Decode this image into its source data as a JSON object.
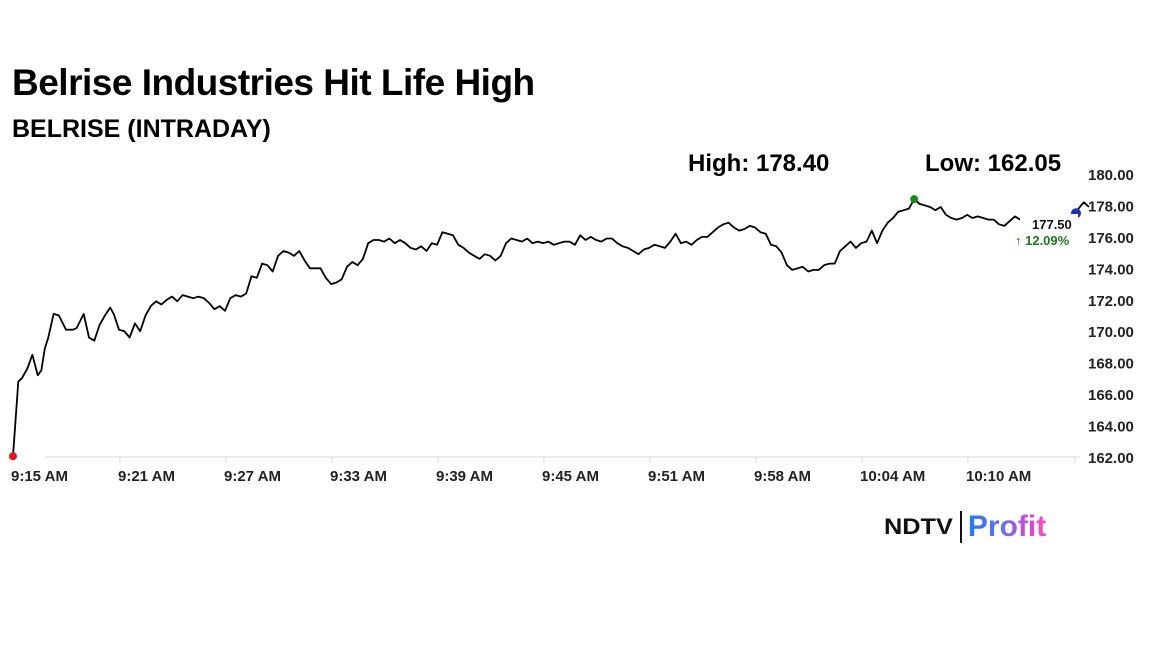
{
  "header": {
    "title": "Belrise Industries Hit Life High",
    "subtitle": "BELRISE (INTRADAY)"
  },
  "stats": {
    "high_label": "High: 178.40",
    "low_label": "Low: 162.05"
  },
  "last": {
    "price": "177.50",
    "change": "↑ 12.09%"
  },
  "logo": {
    "brand": "NDTV",
    "product": "Profit"
  },
  "colors": {
    "line": "#000000",
    "start_marker": "#e8161b",
    "high_marker": "#1a8a1a",
    "end_marker": "#1f2fb8",
    "change_up": "#1e7a1e",
    "grid": "#d9d9d9"
  },
  "chart_data": {
    "type": "line",
    "title": "Belrise Industries Hit Life High",
    "subtitle": "BELRISE (INTRADAY)",
    "xlabel": "",
    "ylabel": "",
    "ylim": [
      162,
      180
    ],
    "y_ticks": [
      "180.00",
      "178.00",
      "176.00",
      "174.00",
      "172.00",
      "170.00",
      "168.00",
      "166.00",
      "164.00",
      "162.00"
    ],
    "x_ticks": [
      "9:15 AM",
      "9:21 AM",
      "9:27 AM",
      "9:33 AM",
      "9:39 AM",
      "9:45 AM",
      "9:51 AM",
      "9:58 AM",
      "10:04 AM",
      "10:10 AM"
    ],
    "grid": false,
    "legend": null,
    "annotations": {
      "high": 178.4,
      "low": 162.05,
      "last": 177.5,
      "change_pct": 12.09
    },
    "series": [
      {
        "name": "BELRISE",
        "x_minutes_from_915": [
          0,
          0.3,
          0.5,
          0.8,
          1.1,
          1.4,
          1.6,
          1.8,
          2.0,
          2.3,
          2.6,
          3.0,
          3.4,
          3.6,
          4.0,
          4.3,
          4.6,
          4.9,
          5.2,
          5.5,
          5.7,
          6.0,
          6.3,
          6.6,
          6.9,
          7.2,
          7.5,
          7.8,
          8.1,
          8.4,
          8.7,
          9.0,
          9.3,
          9.6,
          9.9,
          10.2,
          10.5,
          10.8,
          11.1,
          11.4,
          11.7,
          12.0,
          12.3,
          12.6,
          12.9,
          13.2,
          13.5,
          13.8,
          14.1,
          14.4,
          14.7,
          15.0,
          15.3,
          15.6,
          15.9,
          16.2,
          16.5,
          16.8,
          17.1,
          17.4,
          17.7,
          18.0,
          18.3,
          18.6,
          18.9,
          19.2,
          19.5,
          19.8,
          20.1,
          20.4,
          20.7,
          21.0,
          21.3,
          21.6,
          21.9,
          22.2,
          22.5,
          22.8,
          23.1,
          23.4,
          23.7,
          24.0,
          24.3,
          24.6,
          24.9,
          25.2,
          25.5,
          25.8,
          26.1,
          26.4,
          26.7,
          27.0,
          27.3,
          27.6,
          27.9,
          28.2,
          28.5,
          28.8,
          29.1,
          29.4,
          29.7,
          30.0,
          30.3,
          30.6,
          30.9,
          31.2,
          31.5,
          31.8,
          32.1,
          32.4,
          32.7,
          33.0,
          33.3,
          33.6,
          33.9,
          34.2,
          34.5,
          34.8,
          35.1,
          35.4,
          35.7,
          36.0,
          36.3,
          36.6,
          36.9,
          37.2,
          37.5,
          37.8,
          38.1,
          38.4,
          38.7,
          39.0,
          39.3,
          39.6,
          39.9,
          40.2,
          40.5,
          40.8,
          41.1,
          41.4,
          41.7,
          42.0,
          42.3,
          42.6,
          42.9,
          43.2,
          43.5,
          43.8,
          44.1,
          44.4,
          44.7,
          45.0,
          45.3,
          45.6,
          45.9,
          46.2,
          46.5,
          46.8,
          47.1,
          47.4,
          47.7,
          48.0,
          48.3,
          48.6,
          48.9,
          49.2,
          49.5,
          49.8,
          50.1,
          50.4,
          50.7,
          51.0,
          51.3,
          51.6,
          51.9,
          52.2,
          52.5,
          52.8,
          53.1,
          53.4,
          53.7,
          54.0,
          54.3,
          54.6,
          54.9,
          55.2,
          55.5,
          55.8,
          56.1,
          56.4,
          56.7,
          57.0,
          57.3,
          57.6,
          57.9,
          58.2,
          58.5,
          58.8,
          59.1,
          59.4,
          59.7,
          60.0,
          60.3,
          60.6,
          60.9
        ],
        "values": [
          162.05,
          166.8,
          167.0,
          167.6,
          168.5,
          167.2,
          167.5,
          168.9,
          169.6,
          171.1,
          171.0,
          170.1,
          170.1,
          170.2,
          171.1,
          169.6,
          169.4,
          170.4,
          171.0,
          171.5,
          171.1,
          170.1,
          170.0,
          169.6,
          170.5,
          170.0,
          171.0,
          171.6,
          171.9,
          171.7,
          172.0,
          172.2,
          171.9,
          172.3,
          172.2,
          172.1,
          172.2,
          172.1,
          171.8,
          171.4,
          171.6,
          171.3,
          172.1,
          172.3,
          172.2,
          172.4,
          173.5,
          173.4,
          174.3,
          174.2,
          173.8,
          174.8,
          175.1,
          175.0,
          174.8,
          175.1,
          174.5,
          174.0,
          174.0,
          174.0,
          173.4,
          173.0,
          173.1,
          173.3,
          174.1,
          174.4,
          174.2,
          174.6,
          175.6,
          175.8,
          175.8,
          175.7,
          175.9,
          175.6,
          175.8,
          175.6,
          175.3,
          175.2,
          175.4,
          175.1,
          175.6,
          175.5,
          176.3,
          176.2,
          176.1,
          175.5,
          175.3,
          175.0,
          174.8,
          174.6,
          174.9,
          174.8,
          174.5,
          174.8,
          175.6,
          175.9,
          175.8,
          175.7,
          175.9,
          175.6,
          175.7,
          175.6,
          175.7,
          175.5,
          175.6,
          175.7,
          175.7,
          175.5,
          176.1,
          175.8,
          176.0,
          175.8,
          175.7,
          175.9,
          175.9,
          175.6,
          175.4,
          175.3,
          175.1,
          174.9,
          175.2,
          175.3,
          175.5,
          175.4,
          175.3,
          175.7,
          176.2,
          175.6,
          175.7,
          175.5,
          175.8,
          176.0,
          176.0,
          176.3,
          176.6,
          176.8,
          176.9,
          176.6,
          176.4,
          176.5,
          176.7,
          176.6,
          176.3,
          176.2,
          175.5,
          175.4,
          175.0,
          174.2,
          173.9,
          174.0,
          174.1,
          173.8,
          173.9,
          173.9,
          174.2,
          174.3,
          174.3,
          175.1,
          175.4,
          175.7,
          175.3,
          175.6,
          175.7,
          176.4,
          175.6,
          176.4,
          176.9,
          177.2,
          177.6,
          177.7,
          177.8,
          178.4,
          178.1,
          178.0,
          177.9,
          177.7,
          177.9,
          177.4,
          177.2,
          177.1,
          177.2,
          177.4,
          177.2,
          177.3,
          177.2,
          177.1,
          177.1,
          176.8,
          176.7,
          177.0,
          177.3,
          177.1,
          176.9,
          176.7,
          176.6,
          176.8,
          176.9,
          176.7,
          177.4,
          177.3,
          177.0,
          177.2,
          177.8,
          178.2,
          177.9,
          177.5,
          177.6,
          177.8,
          177.5
        ]
      }
    ]
  }
}
